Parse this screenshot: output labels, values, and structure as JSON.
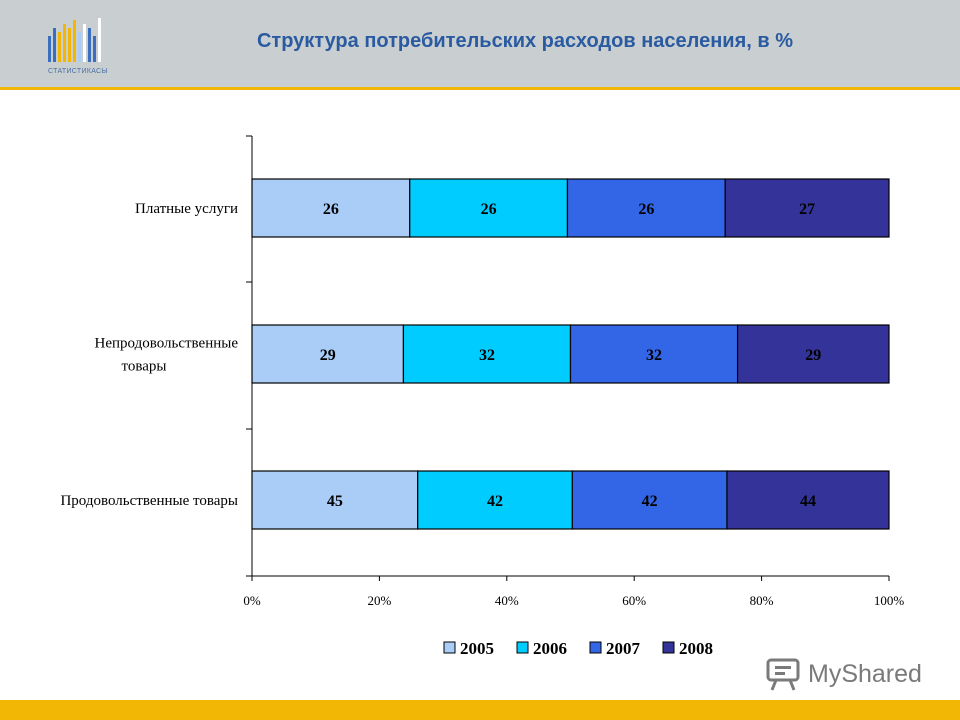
{
  "header": {
    "title": "Структура потребительских расходов населения, в %",
    "logo_text": "СТАТИСТИКАСЫ"
  },
  "watermark": {
    "text": "MyShared",
    "icon": "presentation-board-icon"
  },
  "colors": {
    "header_bg": "#c9cfd1",
    "accent": "#f2b705",
    "title": "#2a5aa0",
    "series": [
      "#a9cdf7",
      "#00ccff",
      "#3366e6",
      "#333399"
    ]
  },
  "chart_data": {
    "type": "bar",
    "orientation": "horizontal",
    "stacked": "percent",
    "title": "Структура потребительских расходов населения, в %",
    "categories": [
      "Платные услуги",
      "Непродовольственные товары",
      "Продовольственные товары"
    ],
    "series": [
      {
        "name": "2005",
        "values": [
          26,
          29,
          45
        ]
      },
      {
        "name": "2006",
        "values": [
          26,
          32,
          42
        ]
      },
      {
        "name": "2007",
        "values": [
          26,
          32,
          42
        ]
      },
      {
        "name": "2008",
        "values": [
          27,
          29,
          44
        ]
      }
    ],
    "xticks": [
      "0%",
      "20%",
      "40%",
      "60%",
      "80%",
      "100%"
    ],
    "xlim": [
      0,
      100
    ],
    "grid": false,
    "legend": "bottom"
  }
}
